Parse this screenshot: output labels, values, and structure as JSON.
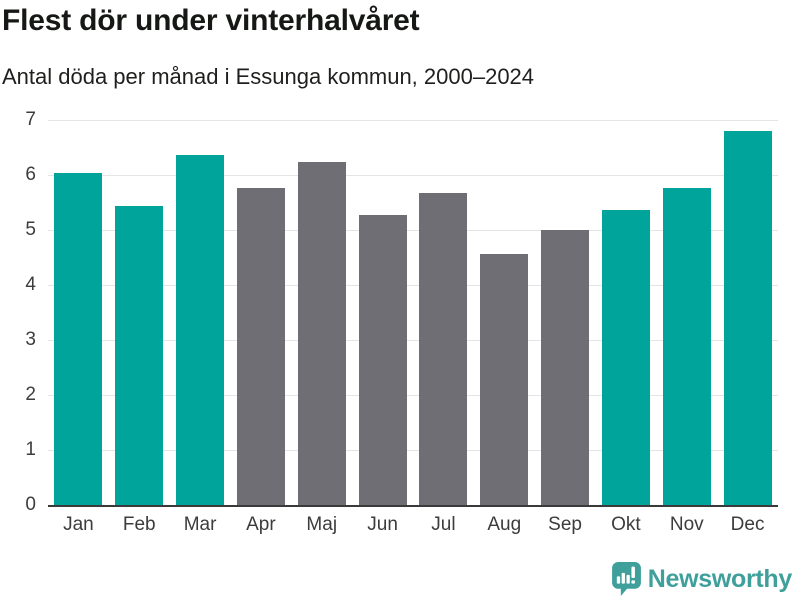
{
  "title": "Flest dör under vinterhalvåret",
  "subtitle": "Antal döda per månad i Essunga kommun, 2000–2024",
  "footer": {
    "brand": "Newsworthy",
    "logo_icon": "newsworthy-chart-bubble-icon"
  },
  "colors": {
    "winter": "#00a49b",
    "summer": "#6f6e74",
    "brand": "#3fa09b",
    "axis_text": "#3c3c3c",
    "gridline": "#e4e4e4",
    "axis_line": "#3a3a3a"
  },
  "chart_data": {
    "type": "bar",
    "title": "Flest dör under vinterhalvåret",
    "subtitle": "Antal döda per månad i Essunga kommun, 2000–2024",
    "categories": [
      "Jan",
      "Feb",
      "Mar",
      "Apr",
      "Maj",
      "Jun",
      "Jul",
      "Aug",
      "Sep",
      "Okt",
      "Nov",
      "Dec"
    ],
    "values": [
      6.04,
      5.44,
      6.36,
      5.76,
      6.24,
      5.28,
      5.68,
      4.56,
      5.0,
      5.36,
      5.76,
      6.8
    ],
    "bar_colors": [
      "winter",
      "winter",
      "winter",
      "summer",
      "summer",
      "summer",
      "summer",
      "summer",
      "summer",
      "winter",
      "winter",
      "winter"
    ],
    "xlabel": "",
    "ylabel": "",
    "ylim": [
      0,
      7
    ],
    "yticks": [
      0,
      1,
      2,
      3,
      4,
      5,
      6,
      7
    ],
    "grid": "horizontal",
    "legend": "none"
  }
}
